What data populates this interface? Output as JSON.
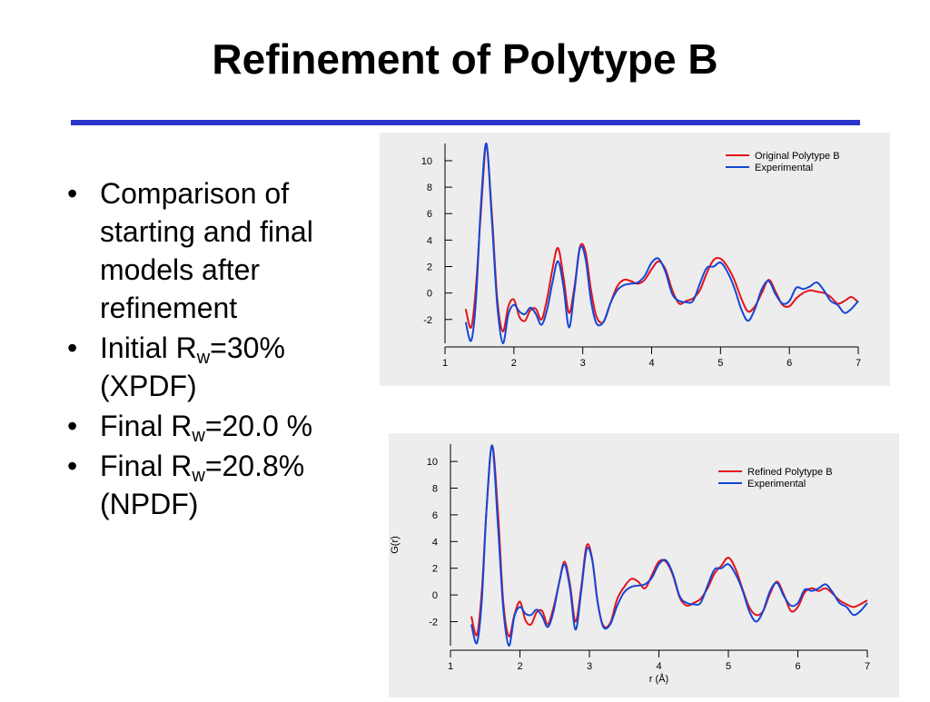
{
  "title": "Refinement of Polytype B",
  "accent_color": "#2b35cc",
  "bullets": [
    {
      "text": "Comparison of starting and final models after refinement"
    },
    {
      "pre": "Initial R",
      "sub": "w",
      "post": "=30% (XPDF)"
    },
    {
      "pre": "Final R",
      "sub": "w",
      "post": "=20.0 %"
    },
    {
      "pre": "Final R",
      "sub": "w",
      "post": "=20.8% (NPDF)"
    }
  ],
  "bullet_glyph": "•",
  "chart_data": [
    {
      "type": "line",
      "xlim": [
        1,
        7
      ],
      "ylim": [
        -3.8,
        11.3
      ],
      "xticks": [
        "1",
        "2",
        "3",
        "4",
        "5",
        "6",
        "7"
      ],
      "yticks": [
        "-2",
        "0",
        "2",
        "4",
        "6",
        "8",
        "10"
      ],
      "xlabel": "",
      "ylabel": "",
      "legend_position": "top-right",
      "grid": false,
      "series": [
        {
          "name": "Original Polytype B",
          "color": "#e3131b",
          "x": [
            1.3,
            1.38,
            1.45,
            1.52,
            1.6,
            1.68,
            1.76,
            1.84,
            1.92,
            2.0,
            2.08,
            2.16,
            2.24,
            2.32,
            2.4,
            2.48,
            2.56,
            2.64,
            2.72,
            2.8,
            2.88,
            2.96,
            3.04,
            3.12,
            3.2,
            3.3,
            3.4,
            3.5,
            3.6,
            3.7,
            3.8,
            3.9,
            4.0,
            4.1,
            4.2,
            4.3,
            4.4,
            4.5,
            4.6,
            4.7,
            4.8,
            4.9,
            5.0,
            5.1,
            5.2,
            5.3,
            5.4,
            5.5,
            5.6,
            5.7,
            5.8,
            5.9,
            6.0,
            6.1,
            6.2,
            6.3,
            6.4,
            6.5,
            6.6,
            6.7,
            6.8,
            6.9,
            7.0
          ],
          "y": [
            -1.2,
            -2.6,
            0.5,
            6.0,
            11.0,
            6.0,
            -0.5,
            -2.9,
            -1.0,
            -0.5,
            -1.8,
            -2.1,
            -1.3,
            -1.2,
            -2.0,
            -0.5,
            1.8,
            3.4,
            1.2,
            -1.5,
            0.5,
            3.5,
            3.1,
            0.2,
            -1.8,
            -2.2,
            -0.8,
            0.5,
            1.0,
            0.9,
            0.7,
            1.0,
            1.8,
            2.4,
            1.8,
            0.2,
            -0.8,
            -0.6,
            -0.4,
            0.2,
            1.5,
            2.5,
            2.6,
            2.0,
            1.0,
            -0.4,
            -1.4,
            -1.0,
            0.0,
            1.0,
            0.1,
            -0.9,
            -1.0,
            -0.4,
            0.0,
            0.2,
            0.1,
            0.0,
            -0.3,
            -0.8,
            -0.6,
            -0.3,
            -0.7
          ]
        },
        {
          "name": "Experimental",
          "color": "#1447d6",
          "x": [
            1.3,
            1.38,
            1.45,
            1.52,
            1.6,
            1.68,
            1.76,
            1.84,
            1.92,
            2.0,
            2.08,
            2.16,
            2.24,
            2.32,
            2.4,
            2.48,
            2.56,
            2.64,
            2.72,
            2.8,
            2.88,
            2.96,
            3.04,
            3.12,
            3.2,
            3.3,
            3.4,
            3.5,
            3.6,
            3.7,
            3.8,
            3.9,
            4.0,
            4.1,
            4.2,
            4.3,
            4.4,
            4.5,
            4.6,
            4.7,
            4.8,
            4.9,
            5.0,
            5.1,
            5.2,
            5.3,
            5.4,
            5.5,
            5.6,
            5.7,
            5.8,
            5.9,
            6.0,
            6.1,
            6.2,
            6.3,
            6.4,
            6.5,
            6.6,
            6.7,
            6.8,
            6.9,
            7.0
          ],
          "y": [
            -2.2,
            -3.6,
            -0.5,
            6.5,
            11.3,
            5.5,
            -1.0,
            -3.8,
            -1.6,
            -0.9,
            -1.4,
            -1.6,
            -1.1,
            -1.6,
            -2.4,
            -1.3,
            0.8,
            2.4,
            0.5,
            -2.6,
            0.2,
            3.4,
            2.6,
            -0.6,
            -2.3,
            -2.2,
            -0.8,
            0.2,
            0.6,
            0.7,
            0.8,
            1.3,
            2.3,
            2.6,
            1.6,
            -0.1,
            -0.6,
            -0.7,
            -0.6,
            0.7,
            1.9,
            2.0,
            2.3,
            1.6,
            0.4,
            -1.2,
            -2.1,
            -1.2,
            0.3,
            0.9,
            -0.1,
            -0.8,
            -0.6,
            0.4,
            0.3,
            0.5,
            0.8,
            0.2,
            -0.6,
            -0.9,
            -1.5,
            -1.2,
            -0.6
          ]
        }
      ]
    },
    {
      "type": "line",
      "xlim": [
        1,
        7
      ],
      "ylim": [
        -3.8,
        11.3
      ],
      "xticks": [
        "1",
        "2",
        "3",
        "4",
        "5",
        "6",
        "7"
      ],
      "yticks": [
        "-2",
        "0",
        "2",
        "4",
        "6",
        "8",
        "10"
      ],
      "xlabel": "r (Å)",
      "ylabel": "G(r)",
      "legend_position": "top-right",
      "grid": false,
      "series": [
        {
          "name": "Refined Polytype B",
          "color": "#e3131b",
          "x": [
            1.3,
            1.38,
            1.45,
            1.52,
            1.6,
            1.68,
            1.76,
            1.84,
            1.92,
            2.0,
            2.08,
            2.16,
            2.24,
            2.32,
            2.4,
            2.48,
            2.56,
            2.64,
            2.72,
            2.8,
            2.88,
            2.96,
            3.04,
            3.12,
            3.2,
            3.3,
            3.4,
            3.5,
            3.6,
            3.7,
            3.8,
            3.9,
            4.0,
            4.1,
            4.2,
            4.3,
            4.4,
            4.5,
            4.6,
            4.7,
            4.8,
            4.9,
            5.0,
            5.1,
            5.2,
            5.3,
            5.4,
            5.5,
            5.6,
            5.7,
            5.8,
            5.9,
            6.0,
            6.1,
            6.2,
            6.3,
            6.4,
            6.5,
            6.6,
            6.7,
            6.8,
            6.9,
            7.0
          ],
          "y": [
            -1.6,
            -3.0,
            0.2,
            6.5,
            11.2,
            6.5,
            -0.5,
            -3.1,
            -1.5,
            -0.5,
            -1.9,
            -2.2,
            -1.3,
            -1.2,
            -2.2,
            -1.0,
            0.8,
            2.5,
            0.8,
            -2.0,
            0.5,
            3.7,
            2.7,
            -0.6,
            -2.3,
            -2.1,
            -0.3,
            0.6,
            1.2,
            1.0,
            0.5,
            1.5,
            2.5,
            2.5,
            1.5,
            -0.2,
            -0.8,
            -0.6,
            -0.3,
            0.5,
            1.6,
            2.2,
            2.8,
            2.0,
            0.5,
            -0.9,
            -1.5,
            -1.2,
            0.1,
            1.0,
            0.0,
            -1.2,
            -0.9,
            0.2,
            0.5,
            0.3,
            0.5,
            0.1,
            -0.4,
            -0.7,
            -0.9,
            -0.7,
            -0.4
          ]
        },
        {
          "name": "Experimental",
          "color": "#1447d6",
          "x": [
            1.3,
            1.38,
            1.45,
            1.52,
            1.6,
            1.68,
            1.76,
            1.84,
            1.92,
            2.0,
            2.08,
            2.16,
            2.24,
            2.32,
            2.4,
            2.48,
            2.56,
            2.64,
            2.72,
            2.8,
            2.88,
            2.96,
            3.04,
            3.12,
            3.2,
            3.3,
            3.4,
            3.5,
            3.6,
            3.7,
            3.8,
            3.9,
            4.0,
            4.1,
            4.2,
            4.3,
            4.4,
            4.5,
            4.6,
            4.7,
            4.8,
            4.9,
            5.0,
            5.1,
            5.2,
            5.3,
            5.4,
            5.5,
            5.6,
            5.7,
            5.8,
            5.9,
            6.0,
            6.1,
            6.2,
            6.3,
            6.4,
            6.5,
            6.6,
            6.7,
            6.8,
            6.9,
            7.0
          ],
          "y": [
            -2.2,
            -3.6,
            -0.5,
            6.5,
            11.2,
            5.5,
            -1.0,
            -3.8,
            -1.6,
            -0.9,
            -1.4,
            -1.5,
            -1.1,
            -1.6,
            -2.4,
            -1.3,
            0.8,
            2.3,
            0.5,
            -2.6,
            0.2,
            3.4,
            2.6,
            -0.6,
            -2.4,
            -2.2,
            -0.8,
            0.2,
            0.6,
            0.7,
            0.8,
            1.3,
            2.3,
            2.6,
            1.6,
            -0.1,
            -0.6,
            -0.7,
            -0.6,
            0.7,
            1.9,
            2.0,
            2.3,
            1.6,
            0.4,
            -1.2,
            -2.0,
            -1.2,
            0.3,
            0.9,
            -0.1,
            -0.8,
            -0.6,
            0.4,
            0.3,
            0.5,
            0.8,
            0.2,
            -0.6,
            -0.9,
            -1.5,
            -1.2,
            -0.6
          ]
        }
      ]
    }
  ]
}
